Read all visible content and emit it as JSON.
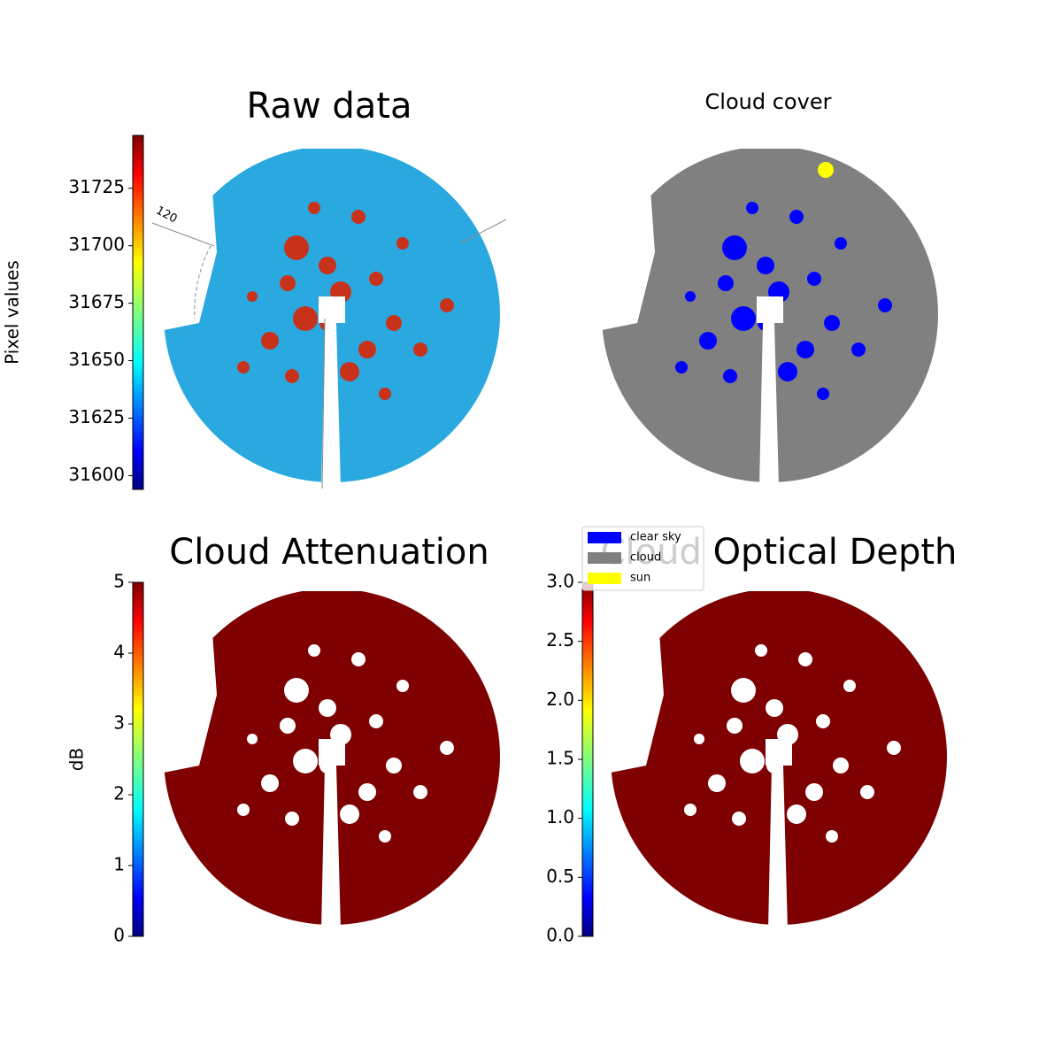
{
  "chart_data": [
    {
      "type": "image",
      "title": "Raw data",
      "colorbar_label": "Pixel values",
      "ylim": [
        31594,
        31748
      ],
      "yticks": [
        31600,
        31625,
        31650,
        31675,
        31700,
        31725
      ],
      "annotations": [
        "120"
      ],
      "colormap": "jet"
    },
    {
      "type": "image",
      "title": "Cloud cover",
      "series": [
        {
          "name": "clear sky",
          "color": "#0000ff"
        },
        {
          "name": "cloud",
          "color": "#808080"
        },
        {
          "name": "sun",
          "color": "#ffff00"
        }
      ]
    },
    {
      "type": "image",
      "title": "Cloud Attenuation",
      "colorbar_label": "dB",
      "ylim": [
        0,
        5
      ],
      "yticks": [
        0,
        1,
        2,
        3,
        4,
        5
      ],
      "colormap": "jet"
    },
    {
      "type": "image",
      "title": "Cloud Optical Depth",
      "ylim": [
        0,
        3
      ],
      "yticks": [
        {
          "value": 0,
          "label": "0.0"
        },
        {
          "value": 0.5,
          "label": "0.5"
        },
        {
          "value": 1,
          "label": "1.0"
        },
        {
          "value": 1.5,
          "label": "1.5"
        },
        {
          "value": 2,
          "label": "2.0"
        },
        {
          "value": 2.5,
          "label": "2.5"
        },
        {
          "value": 3,
          "label": "3.0"
        }
      ],
      "colormap": "jet"
    }
  ]
}
